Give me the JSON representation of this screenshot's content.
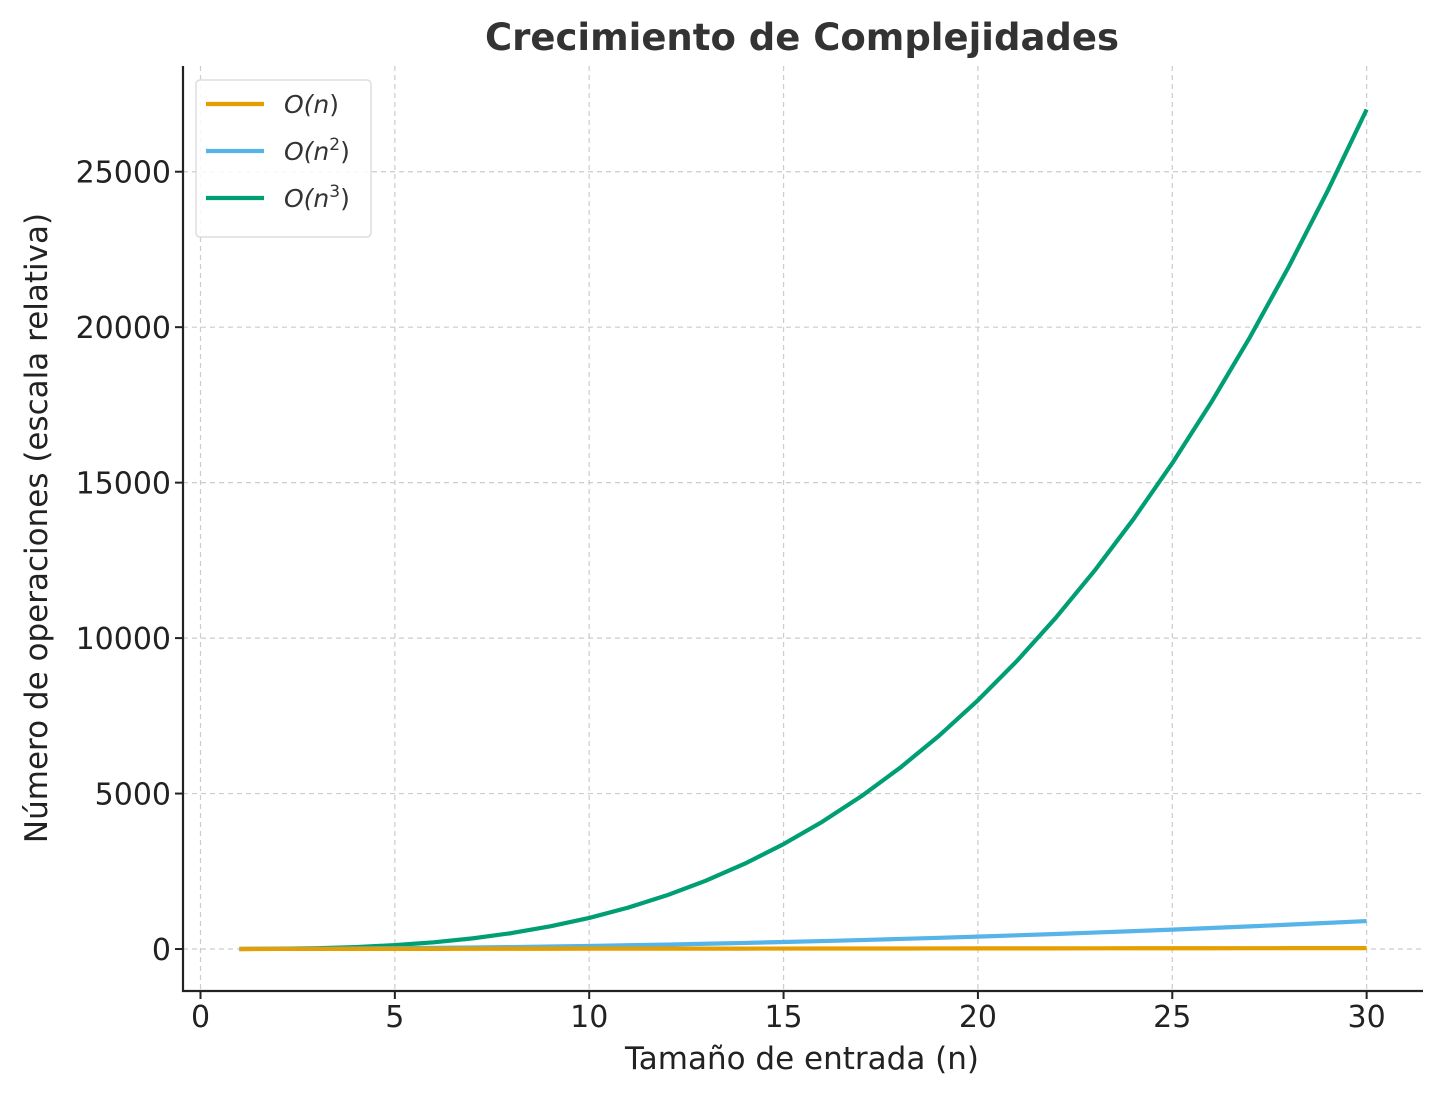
{
  "chart_data": {
    "type": "line",
    "title": "Crecimiento de Complejidades",
    "xlabel": "Tamaño de entrada (n)",
    "ylabel": "Número de operaciones (escala relativa)",
    "xlim": [
      -0.45,
      31.45
    ],
    "ylim": [
      -1350,
      28400
    ],
    "xticks": [
      0,
      5,
      10,
      15,
      20,
      25,
      30
    ],
    "yticks": [
      0,
      5000,
      10000,
      15000,
      20000,
      25000
    ],
    "grid": true,
    "legend_position": "top-left",
    "x": [
      1,
      2,
      3,
      4,
      5,
      6,
      7,
      8,
      9,
      10,
      11,
      12,
      13,
      14,
      15,
      16,
      17,
      18,
      19,
      20,
      21,
      22,
      23,
      24,
      25,
      26,
      27,
      28,
      29,
      30
    ],
    "series": [
      {
        "name": "O(n)",
        "name_base": "O(n",
        "name_sup": "",
        "color": "#e69f00",
        "values": [
          1,
          2,
          3,
          4,
          5,
          6,
          7,
          8,
          9,
          10,
          11,
          12,
          13,
          14,
          15,
          16,
          17,
          18,
          19,
          20,
          21,
          22,
          23,
          24,
          25,
          26,
          27,
          28,
          29,
          30
        ]
      },
      {
        "name": "O(n2)",
        "name_base": "O(n",
        "name_sup": "2",
        "color": "#56b4e9",
        "values": [
          1,
          4,
          9,
          16,
          25,
          36,
          49,
          64,
          81,
          100,
          121,
          144,
          169,
          196,
          225,
          256,
          289,
          324,
          361,
          400,
          441,
          484,
          529,
          576,
          625,
          676,
          729,
          784,
          841,
          900
        ]
      },
      {
        "name": "O(n3)",
        "name_base": "O(n",
        "name_sup": "3",
        "color": "#009e73",
        "values": [
          1,
          8,
          27,
          64,
          125,
          216,
          343,
          512,
          729,
          1000,
          1331,
          1728,
          2197,
          2744,
          3375,
          4096,
          4913,
          5832,
          6859,
          8000,
          9261,
          10648,
          12167,
          13824,
          15625,
          17576,
          19683,
          21952,
          24389,
          27000
        ]
      }
    ]
  }
}
